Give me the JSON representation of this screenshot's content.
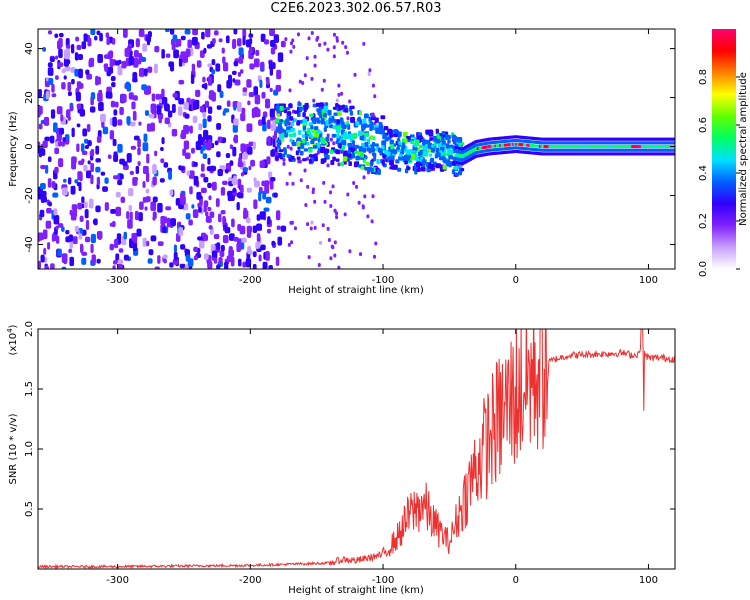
{
  "title": "C2E6.2023.302.06.57.R03",
  "chart_data": [
    {
      "type": "heatmap",
      "xlabel": "Height of straight line (km)",
      "ylabel": "Frequency (Hz)",
      "xlim": [
        -360,
        120
      ],
      "ylim": [
        -50,
        48
      ],
      "xticks": [
        -300,
        -200,
        -100,
        0,
        100
      ],
      "yticks": [
        -40,
        -20,
        0,
        20,
        40
      ],
      "colorbar": {
        "label": "Normalized spectral amplitude",
        "range": [
          0,
          1
        ],
        "ticks": [
          "0.0",
          "0.2",
          "0.4",
          "0.6",
          "0.8"
        ],
        "tick_values": [
          0,
          0.2,
          0.4,
          0.6,
          0.8
        ],
        "colors": [
          "#ffffff",
          "#c8a0ff",
          "#8020ff",
          "#3000ff",
          "#0060ff",
          "#00e0ff",
          "#00ff60",
          "#60ff00",
          "#ffff00",
          "#ff8000",
          "#ff0000",
          "#ff0070"
        ]
      },
      "ridge": [
        {
          "x": -180,
          "f": 5
        },
        {
          "x": -150,
          "f": 6
        },
        {
          "x": -120,
          "f": 4
        },
        {
          "x": -100,
          "f": 0
        },
        {
          "x": -80,
          "f": -3
        },
        {
          "x": -60,
          "f": -1
        },
        {
          "x": -50,
          "f": -3
        },
        {
          "x": -40,
          "f": -4
        },
        {
          "x": -30,
          "f": -1
        },
        {
          "x": -20,
          "f": 0
        },
        {
          "x": 0,
          "f": 1
        },
        {
          "x": 20,
          "f": 0
        },
        {
          "x": 60,
          "f": 0
        },
        {
          "x": 120,
          "f": 0
        }
      ]
    },
    {
      "type": "line",
      "xlabel": "Height of straight line (km)",
      "ylabel": "SNR (10 * v/v)",
      "scale_label": "(x10",
      "scale_exp": "4",
      "scale_close": ")",
      "xlim": [
        -360,
        120
      ],
      "ylim": [
        0,
        2.0
      ],
      "xticks": [
        -300,
        -200,
        -100,
        0,
        100
      ],
      "yticks": [
        0.5,
        1.0,
        1.5,
        2.0
      ],
      "ytick_labels": [
        "0.5",
        "1.0",
        "1.5",
        "2.0"
      ],
      "color": "#ee3030",
      "series": [
        {
          "x": [
            -360,
            -300,
            -200,
            -140,
            -130,
            -120,
            -100,
            -90,
            -80,
            -70,
            -60,
            -50,
            -40,
            -30,
            -20,
            -10,
            0,
            10,
            20,
            30,
            40,
            60,
            80,
            90,
            95,
            100,
            110,
            120
          ],
          "y": [
            0.02,
            0.02,
            0.03,
            0.05,
            0.08,
            0.07,
            0.12,
            0.25,
            0.45,
            0.55,
            0.35,
            0.22,
            0.55,
            0.85,
            1.1,
            1.3,
            1.45,
            1.6,
            1.7,
            1.75,
            1.78,
            1.79,
            1.8,
            1.78,
            1.82,
            1.76,
            1.76,
            1.75
          ]
        }
      ]
    }
  ]
}
